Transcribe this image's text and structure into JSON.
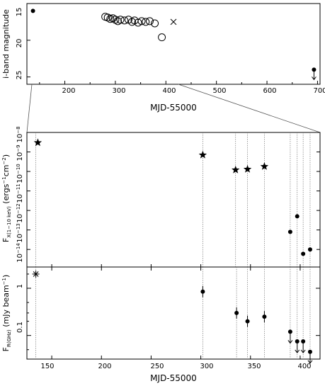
{
  "chart_data": [
    {
      "type": "scatter",
      "panel": "optical",
      "xlabel": "MJD-55000",
      "ylabel": "i-band magnitude",
      "xlim": [
        125,
        705
      ],
      "ylim": [
        26,
        15
      ],
      "xticks": [
        "200",
        "300",
        "400",
        "500",
        "600",
        "700"
      ],
      "yticks": [
        "15",
        "20",
        "25"
      ],
      "series": [
        {
          "marker": "filled-circle",
          "points": [
            {
              "x": 137,
              "y": 16.0
            }
          ]
        },
        {
          "marker": "open-circle",
          "points": [
            {
              "x": 280,
              "y": 16.8
            },
            {
              "x": 285,
              "y": 16.9
            },
            {
              "x": 290,
              "y": 17.1
            },
            {
              "x": 295,
              "y": 17.0
            },
            {
              "x": 300,
              "y": 17.2
            },
            {
              "x": 305,
              "y": 17.4
            },
            {
              "x": 310,
              "y": 17.2
            },
            {
              "x": 318,
              "y": 17.3
            },
            {
              "x": 326,
              "y": 17.2
            },
            {
              "x": 333,
              "y": 17.5
            },
            {
              "x": 338,
              "y": 17.3
            },
            {
              "x": 345,
              "y": 17.6
            },
            {
              "x": 352,
              "y": 17.4
            },
            {
              "x": 360,
              "y": 17.5
            },
            {
              "x": 368,
              "y": 17.4
            },
            {
              "x": 378,
              "y": 17.7
            },
            {
              "x": 392,
              "y": 19.6
            }
          ]
        },
        {
          "marker": "cross",
          "points": [
            {
              "x": 415,
              "y": 17.5
            }
          ]
        },
        {
          "marker": "filled-circle-upper-limit",
          "points": [
            {
              "x": 693,
              "y": 24.3
            }
          ]
        }
      ]
    },
    {
      "type": "scatter",
      "panel": "x-ray",
      "ylabel_main": "F",
      "ylabel_sub": "X(1−10 keV)",
      "ylabel_units": " (ergs",
      "ylabel_exp1": "−1",
      "ylabel_mid": "cm",
      "ylabel_exp2": "−2",
      "ylabel_close": ")",
      "xlim": [
        125,
        420
      ],
      "ylim_log10": [
        -14.9,
        -8
      ],
      "ytick_base": "10",
      "yticks": [
        "−14",
        "−13",
        "−12",
        "−11",
        "−10",
        "−9",
        "−8"
      ],
      "series": [
        {
          "marker": "star",
          "points": [
            {
              "x": 136,
              "y": 3e-09
            },
            {
              "x": 302,
              "y": 7e-10
            },
            {
              "x": 335,
              "y": 1.2e-10
            },
            {
              "x": 347,
              "y": 1.3e-10
            },
            {
              "x": 364,
              "y": 1.8e-10
            }
          ]
        },
        {
          "marker": "filled-circle",
          "points": [
            {
              "x": 390,
              "y": 8e-14
            },
            {
              "x": 397,
              "y": 5e-13
            },
            {
              "x": 403,
              "y": 6e-15
            },
            {
              "x": 410,
              "y": 1e-14
            }
          ]
        }
      ],
      "vlines_x": [
        134,
        302,
        335,
        347,
        364,
        390,
        397,
        403,
        410
      ]
    },
    {
      "type": "scatter",
      "panel": "radio",
      "xlabel": "MJD-55000",
      "ylabel_main": "F",
      "ylabel_sub": "R(GHz)",
      "ylabel_units": " (mJy beam",
      "ylabel_exp": "−1",
      "ylabel_close": ")",
      "xlim": [
        125,
        420
      ],
      "ylim_log10": [
        -1.5,
        0.45
      ],
      "xticks": [
        "150",
        "200",
        "250",
        "300",
        "350",
        "400"
      ],
      "yticks": [
        "1",
        "0.1"
      ],
      "series": [
        {
          "marker": "asterisk",
          "points": [
            {
              "x": 134,
              "y": 2.0
            }
          ]
        },
        {
          "marker": "filled-circle-errorbar",
          "points": [
            {
              "x": 302,
              "y": 0.85
            },
            {
              "x": 336,
              "y": 0.3
            },
            {
              "x": 347,
              "y": 0.2
            },
            {
              "x": 364,
              "y": 0.25
            }
          ]
        },
        {
          "marker": "filled-circle-upper-limit",
          "points": [
            {
              "x": 390,
              "y": 0.12
            },
            {
              "x": 397,
              "y": 0.075
            },
            {
              "x": 403,
              "y": 0.075
            },
            {
              "x": 410,
              "y": 0.045
            }
          ]
        }
      ],
      "vlines_x": [
        134,
        302,
        336,
        347,
        364,
        390,
        397,
        403,
        410
      ]
    }
  ]
}
